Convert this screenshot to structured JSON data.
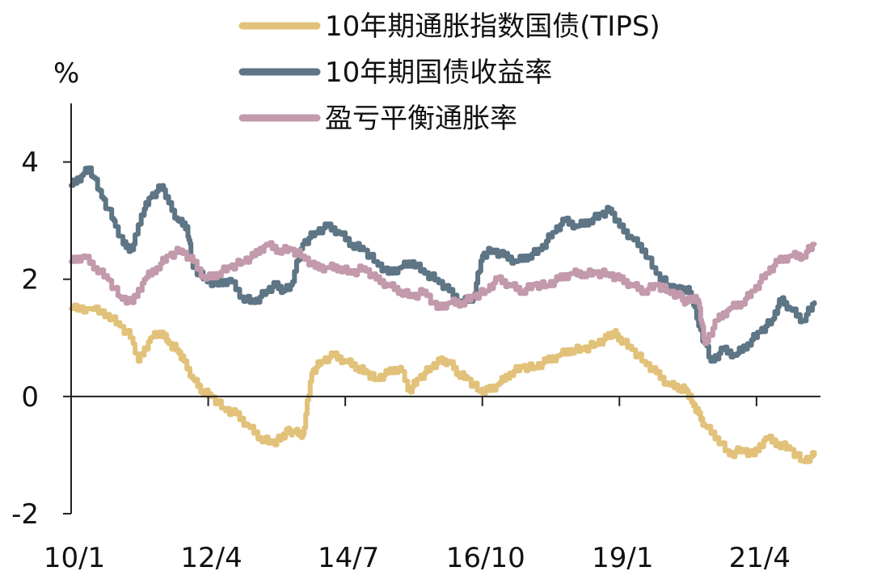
{
  "chart_data": {
    "type": "line",
    "ylabel": "%",
    "ylim": [
      -2,
      5
    ],
    "yticks": [
      4,
      2,
      0,
      -2
    ],
    "ytick_labels": [
      "4",
      "2",
      "0",
      "-2"
    ],
    "xlim": [
      2010.0,
      2022.3
    ],
    "xticks": [
      2010.0,
      2012.25,
      2014.5,
      2016.75,
      2019.0,
      2021.25
    ],
    "xtick_labels": [
      "10/1",
      "12/4",
      "14/7",
      "16/10",
      "19/1",
      "21/4"
    ],
    "legend_position": "top",
    "grid": false,
    "series": [
      {
        "name": "10年期通胀指数国债(TIPS)",
        "color": "#E2C27A",
        "x": [
          2010.0,
          2010.3,
          2010.6,
          2010.8,
          2011.0,
          2011.1,
          2011.3,
          2011.5,
          2011.6,
          2011.75,
          2011.85,
          2012.0,
          2012.15,
          2012.3,
          2012.5,
          2012.7,
          2012.9,
          2013.1,
          2013.3,
          2013.45,
          2013.55,
          2013.65,
          2013.8,
          2013.95,
          2014.1,
          2014.3,
          2014.5,
          2014.7,
          2014.85,
          2015.0,
          2015.2,
          2015.4,
          2015.55,
          2015.7,
          2015.9,
          2016.05,
          2016.2,
          2016.35,
          2016.5,
          2016.7,
          2016.85,
          2017.0,
          2017.2,
          2017.4,
          2017.6,
          2017.8,
          2018.0,
          2018.2,
          2018.4,
          2018.6,
          2018.8,
          2018.9,
          2019.0,
          2019.2,
          2019.4,
          2019.6,
          2019.8,
          2020.0,
          2020.1,
          2020.2,
          2020.3,
          2020.4,
          2020.6,
          2020.8,
          2021.0,
          2021.2,
          2021.4,
          2021.6,
          2021.8,
          2022.0,
          2022.2
        ],
        "values": [
          1.5,
          1.5,
          1.4,
          1.2,
          1.0,
          0.6,
          1.0,
          1.1,
          0.9,
          0.8,
          0.6,
          0.3,
          0.1,
          0.0,
          -0.2,
          -0.3,
          -0.5,
          -0.7,
          -0.8,
          -0.7,
          -0.6,
          -0.6,
          -0.65,
          0.4,
          0.6,
          0.7,
          0.6,
          0.5,
          0.4,
          0.3,
          0.4,
          0.5,
          0.1,
          0.3,
          0.5,
          0.6,
          0.6,
          0.4,
          0.3,
          0.1,
          0.1,
          0.2,
          0.4,
          0.5,
          0.5,
          0.6,
          0.7,
          0.8,
          0.8,
          0.9,
          1.0,
          1.1,
          1.0,
          0.8,
          0.6,
          0.4,
          0.2,
          0.15,
          0.1,
          -0.1,
          -0.3,
          -0.5,
          -0.7,
          -1.0,
          -0.9,
          -1.0,
          -0.7,
          -0.8,
          -0.9,
          -1.1,
          -1.0
        ]
      },
      {
        "name": "10年期国债收益率",
        "color": "#5E7585",
        "x": [
          2010.0,
          2010.2,
          2010.3,
          2010.5,
          2010.7,
          2010.85,
          2011.0,
          2011.15,
          2011.3,
          2011.5,
          2011.6,
          2011.75,
          2011.9,
          2012.0,
          2012.2,
          2012.4,
          2012.6,
          2012.8,
          2013.0,
          2013.2,
          2013.35,
          2013.5,
          2013.6,
          2013.8,
          2014.0,
          2014.2,
          2014.4,
          2014.6,
          2014.8,
          2015.0,
          2015.2,
          2015.4,
          2015.6,
          2015.8,
          2016.0,
          2016.2,
          2016.4,
          2016.6,
          2016.75,
          2016.9,
          2017.1,
          2017.3,
          2017.5,
          2017.7,
          2017.9,
          2018.1,
          2018.3,
          2018.5,
          2018.7,
          2018.85,
          2019.0,
          2019.2,
          2019.4,
          2019.6,
          2019.8,
          2020.0,
          2020.1,
          2020.2,
          2020.3,
          2020.5,
          2020.7,
          2020.9,
          2021.1,
          2021.3,
          2021.5,
          2021.65,
          2021.8,
          2022.0,
          2022.2
        ],
        "values": [
          3.6,
          3.8,
          3.9,
          3.4,
          3.0,
          2.6,
          2.5,
          3.1,
          3.4,
          3.6,
          3.3,
          3.0,
          2.9,
          2.2,
          2.0,
          1.9,
          2.0,
          1.7,
          1.6,
          1.8,
          1.9,
          1.8,
          1.9,
          2.6,
          2.8,
          2.9,
          2.8,
          2.6,
          2.5,
          2.3,
          2.1,
          2.2,
          2.3,
          2.1,
          2.0,
          1.8,
          1.6,
          1.7,
          2.4,
          2.5,
          2.4,
          2.3,
          2.4,
          2.5,
          2.8,
          3.0,
          2.9,
          3.0,
          3.1,
          3.2,
          2.9,
          2.7,
          2.5,
          2.1,
          1.9,
          1.8,
          1.85,
          1.7,
          1.2,
          0.6,
          0.8,
          0.7,
          0.9,
          1.1,
          1.3,
          1.65,
          1.5,
          1.3,
          1.6
        ]
      },
      {
        "name": "盈亏平衡通胀率",
        "color": "#C29AAC",
        "x": [
          2010.0,
          2010.2,
          2010.4,
          2010.6,
          2010.8,
          2011.0,
          2011.2,
          2011.4,
          2011.6,
          2011.8,
          2012.0,
          2012.2,
          2012.4,
          2012.6,
          2012.8,
          2013.0,
          2013.2,
          2013.4,
          2013.6,
          2013.8,
          2014.0,
          2014.2,
          2014.4,
          2014.6,
          2014.8,
          2015.0,
          2015.2,
          2015.4,
          2015.6,
          2015.8,
          2016.0,
          2016.2,
          2016.4,
          2016.6,
          2016.8,
          2017.0,
          2017.2,
          2017.4,
          2017.6,
          2017.8,
          2018.0,
          2018.2,
          2018.4,
          2018.6,
          2018.8,
          2019.0,
          2019.2,
          2019.4,
          2019.6,
          2019.8,
          2020.0,
          2020.1,
          2020.2,
          2020.3,
          2020.4,
          2020.6,
          2020.8,
          2021.0,
          2021.2,
          2021.4,
          2021.6,
          2021.8,
          2022.0,
          2022.2
        ],
        "values": [
          2.3,
          2.4,
          2.2,
          2.0,
          1.7,
          1.6,
          2.0,
          2.2,
          2.4,
          2.5,
          2.3,
          2.0,
          2.1,
          2.2,
          2.3,
          2.4,
          2.6,
          2.5,
          2.5,
          2.4,
          2.2,
          2.2,
          2.2,
          2.1,
          2.2,
          2.0,
          1.9,
          1.8,
          1.7,
          1.8,
          1.5,
          1.6,
          1.6,
          1.7,
          1.8,
          2.0,
          1.9,
          1.8,
          1.9,
          1.9,
          2.0,
          2.1,
          2.1,
          2.1,
          2.1,
          2.0,
          1.9,
          1.8,
          1.9,
          1.8,
          1.7,
          1.6,
          1.7,
          1.6,
          0.9,
          1.3,
          1.5,
          1.6,
          1.8,
          2.1,
          2.3,
          2.4,
          2.4,
          2.6
        ]
      }
    ]
  }
}
